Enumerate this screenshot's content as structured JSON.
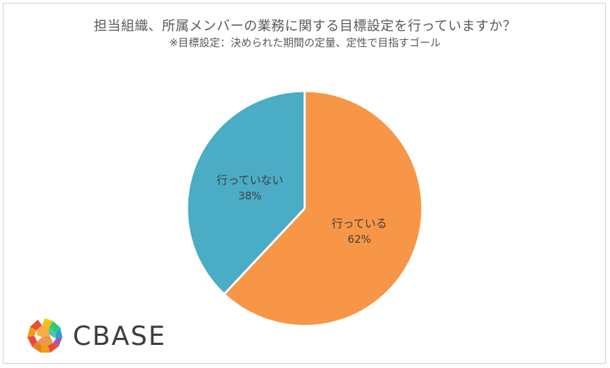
{
  "title": "担当組織、所属メンバーの業務に関する目標設定を行っていますか？",
  "subtitle": "※目標設定：決められた期間の定量、定性で目指すゴール",
  "chart_data": {
    "type": "pie",
    "title": "担当組織、所属メンバーの業務に関する目標設定を行っていますか？",
    "subtitle": "※目標設定：決められた期間の定量、定性で目指すゴール",
    "slices": [
      {
        "label": "行っている",
        "value": 62,
        "value_label": "62%",
        "color": "#F79646"
      },
      {
        "label": "行っていない",
        "value": 38,
        "value_label": "38%",
        "color": "#4BACC6"
      }
    ],
    "start_angle_deg": 0,
    "direction": "clockwise",
    "legend": "none"
  },
  "logo": {
    "text": "CBASE",
    "colors": [
      "#E84C3D",
      "#F39C12",
      "#F1C40F",
      "#2ECC71",
      "#3498DB",
      "#9B59B6"
    ]
  }
}
